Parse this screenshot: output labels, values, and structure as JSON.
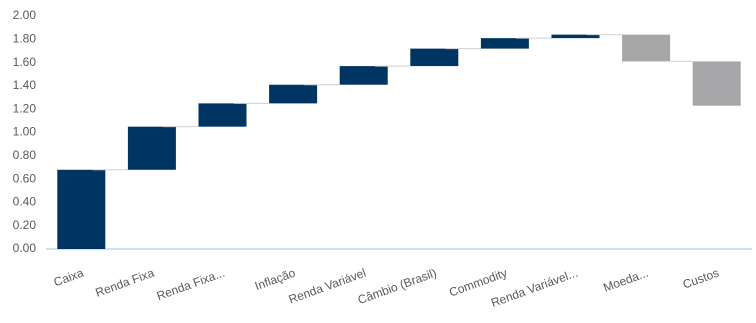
{
  "chart_data": {
    "type": "waterfall",
    "categories": [
      "Caixa",
      "Renda Fixa",
      "Renda Fixa...",
      "Inflação",
      "Renda Variável",
      "Câmbio (Brasil)",
      "Commodity",
      "Renda Variável...",
      "Moeda...",
      "Custos"
    ],
    "values": [
      0.68,
      0.37,
      0.2,
      0.16,
      0.16,
      0.15,
      0.09,
      0.03,
      -0.23,
      -0.38
    ],
    "increase_color": "#003462",
    "decrease_color": "#a6a6a8",
    "ylim": [
      0,
      2
    ],
    "yticks": [
      {
        "value": 0,
        "label": "0.00"
      },
      {
        "value": 0.2,
        "label": "0.20"
      },
      {
        "value": 0.4,
        "label": "0.40"
      },
      {
        "value": 0.6,
        "label": "0.60"
      },
      {
        "value": 0.8,
        "label": "0.80"
      },
      {
        "value": 1,
        "label": "1.00"
      },
      {
        "value": 1.2,
        "label": "1.20"
      },
      {
        "value": 1.4,
        "label": "1.40"
      },
      {
        "value": 1.6,
        "label": "1.60"
      },
      {
        "value": 1.8,
        "label": "1.80"
      },
      {
        "value": 2,
        "label": "2.00"
      }
    ],
    "grid": false
  }
}
